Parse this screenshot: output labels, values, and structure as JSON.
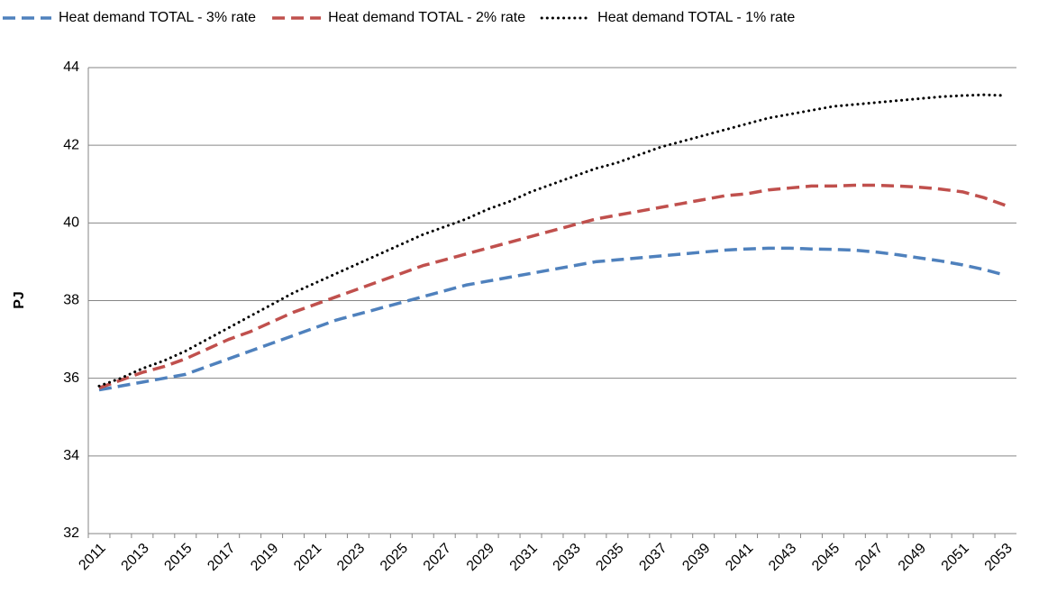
{
  "chart_data": {
    "type": "line",
    "y_label": "PJ",
    "categories": [
      "2011",
      null,
      "2013",
      null,
      "2015",
      null,
      "2017",
      null,
      "2019",
      null,
      "2021",
      null,
      "2023",
      null,
      "2025",
      null,
      "2027",
      null,
      "2029",
      null,
      "2031",
      null,
      "2033",
      null,
      "2035",
      null,
      "2037",
      null,
      "2039",
      null,
      "2041",
      null,
      "2043",
      null,
      "2045",
      null,
      "2047",
      null,
      "2049",
      null,
      "2051",
      null,
      "2053"
    ],
    "series": [
      {
        "name": "Heat demand TOTAL - 3% rate",
        "color": "#4f81bd",
        "dash": "dashed",
        "values": [
          35.7,
          35.8,
          35.9,
          36.0,
          36.1,
          36.3,
          36.5,
          36.7,
          36.9,
          37.1,
          37.3,
          37.5,
          37.65,
          37.8,
          37.95,
          38.1,
          38.25,
          38.4,
          38.5,
          38.6,
          38.7,
          38.8,
          38.9,
          39.0,
          39.05,
          39.1,
          39.15,
          39.2,
          39.25,
          39.3,
          39.33,
          39.35,
          39.35,
          39.33,
          39.32,
          39.3,
          39.25,
          39.18,
          39.1,
          39.02,
          38.92,
          38.8,
          38.65
        ]
      },
      {
        "name": "Heat demand TOTAL - 2% rate",
        "color": "#c0504d",
        "dash": "dashed",
        "values": [
          35.75,
          35.95,
          36.15,
          36.3,
          36.5,
          36.75,
          37.0,
          37.2,
          37.45,
          37.7,
          37.9,
          38.1,
          38.3,
          38.5,
          38.7,
          38.9,
          39.05,
          39.2,
          39.35,
          39.5,
          39.65,
          39.8,
          39.95,
          40.1,
          40.2,
          40.3,
          40.4,
          40.5,
          40.6,
          40.7,
          40.75,
          40.85,
          40.9,
          40.95,
          40.95,
          40.97,
          40.97,
          40.95,
          40.92,
          40.87,
          40.8,
          40.65,
          40.45
        ]
      },
      {
        "name": "Heat demand TOTAL - 1% rate",
        "color": "#000000",
        "dash": "dotted",
        "values": [
          35.8,
          36.0,
          36.25,
          36.45,
          36.7,
          37.0,
          37.3,
          37.6,
          37.9,
          38.2,
          38.45,
          38.7,
          38.95,
          39.2,
          39.45,
          39.7,
          39.9,
          40.1,
          40.35,
          40.55,
          40.8,
          41.0,
          41.2,
          41.4,
          41.55,
          41.75,
          41.95,
          42.1,
          42.25,
          42.4,
          42.55,
          42.7,
          42.8,
          42.9,
          43.0,
          43.05,
          43.1,
          43.15,
          43.2,
          43.25,
          43.28,
          43.3,
          43.28
        ]
      }
    ],
    "ylim": [
      32,
      44
    ],
    "yticks": [
      32,
      34,
      36,
      38,
      40,
      42,
      44
    ],
    "grid": true,
    "legend": "top"
  }
}
